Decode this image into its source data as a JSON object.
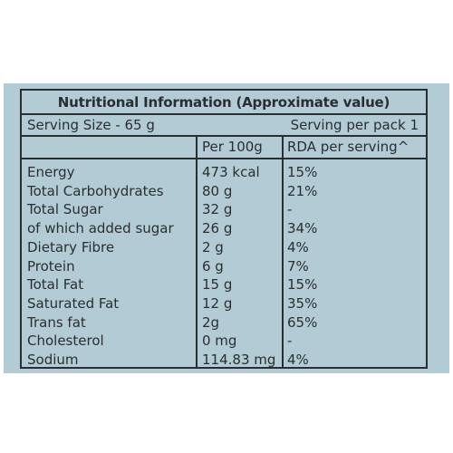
{
  "table": {
    "title": "Nutritional Information (Approximate value)",
    "serving_size": "Serving Size - 65 g",
    "serving_per_pack": "Serving per pack 1",
    "headers": {
      "name": "",
      "per_100g": "Per 100g",
      "rda": "RDA per serving^"
    },
    "rows": [
      {
        "name": "Energy",
        "per_100g": "473 kcal",
        "rda": "15%"
      },
      {
        "name": "Total Carbohydrates",
        "per_100g": "80 g",
        "rda": "21%"
      },
      {
        "name": "Total Sugar",
        "per_100g": "32 g",
        "rda": "-"
      },
      {
        "name": "of which added sugar",
        "per_100g": "26 g",
        "rda": "34%"
      },
      {
        "name": "Dietary Fibre",
        "per_100g": "2 g",
        "rda": "4%"
      },
      {
        "name": "Protein",
        "per_100g": "6 g",
        "rda": "7%"
      },
      {
        "name": "Total Fat",
        "per_100g": "15 g",
        "rda": "15%"
      },
      {
        "name": "Saturated Fat",
        "per_100g": "12 g",
        "rda": "35%"
      },
      {
        "name": "Trans fat",
        "per_100g": "2g",
        "rda": "65%"
      },
      {
        "name": "Cholesterol",
        "per_100g": "0 mg",
        "rda": "-"
      },
      {
        "name": "Sodium",
        "per_100g": "114.83 mg",
        "rda": "4%"
      }
    ]
  }
}
